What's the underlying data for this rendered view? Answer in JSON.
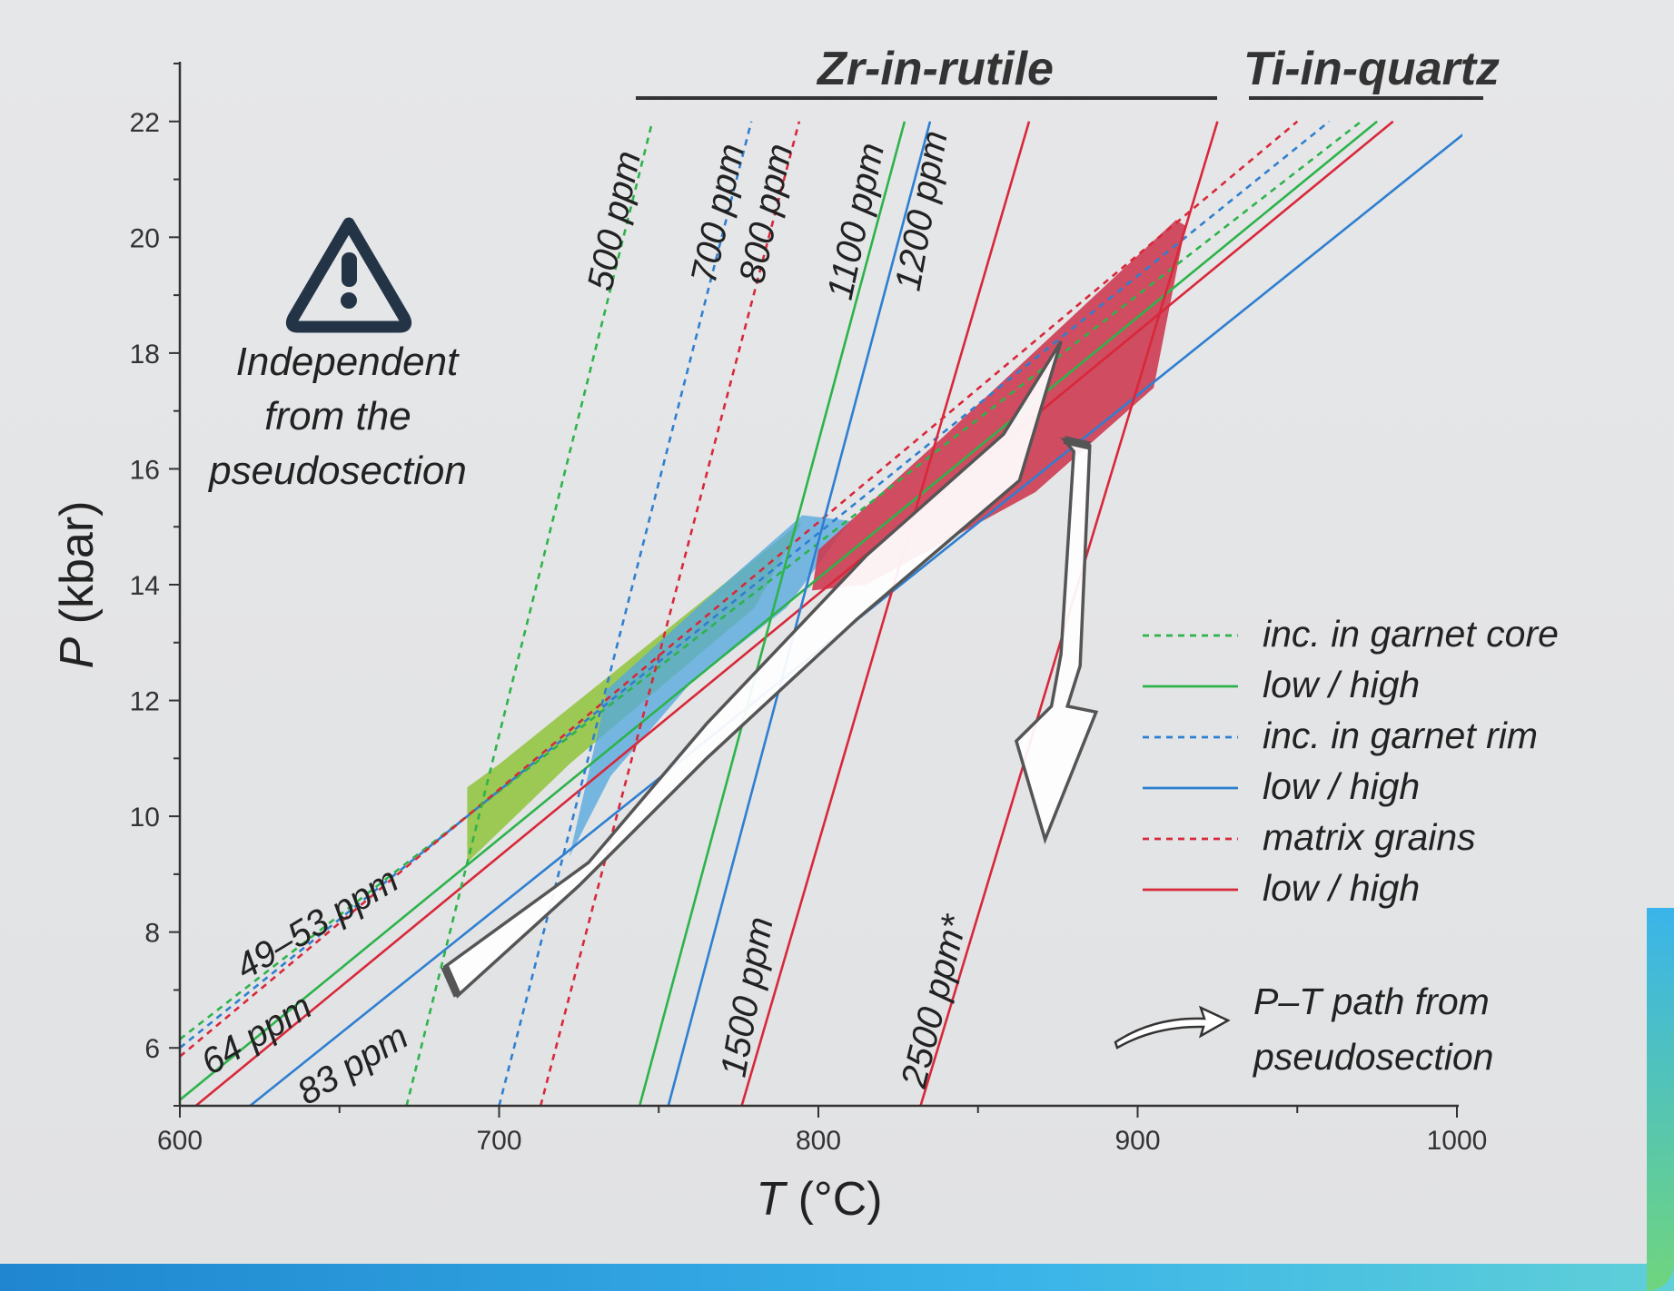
{
  "chart_data": {
    "type": "line",
    "xlabel": "T (°C)",
    "ylabel": "P (kbar)",
    "xlim": [
      600,
      1000
    ],
    "ylim": [
      5,
      23
    ],
    "xticks": [
      600,
      700,
      800,
      900,
      1000
    ],
    "yticks": [
      6,
      8,
      10,
      12,
      14,
      16,
      18,
      20,
      22
    ],
    "headers": {
      "zr": "Zr-in-rutile",
      "ti": "Ti-in-quartz"
    },
    "independent_note": [
      "Independent",
      "from the",
      "pseudosection"
    ],
    "ti_labels": [
      "49–53 ppm",
      "64 ppm",
      "83 ppm"
    ],
    "zr_labels": [
      "500 ppm",
      "700 ppm",
      "800 ppm",
      "1100 ppm",
      "1200 ppm",
      "1500 ppm",
      "2500 ppm*"
    ],
    "legend": [
      {
        "label": "inc. in garnet core",
        "color": "#2db34a",
        "style": "dashed"
      },
      {
        "label": "low / high",
        "color": "#2db34a",
        "style": "solid"
      },
      {
        "label": "inc. in garnet rim",
        "color": "#2f7fd0",
        "style": "dashed"
      },
      {
        "label": "low / high",
        "color": "#2f7fd0",
        "style": "solid"
      },
      {
        "label": "matrix grains",
        "color": "#d8283a",
        "style": "dashed"
      },
      {
        "label": "low / high",
        "color": "#d8283a",
        "style": "solid"
      }
    ],
    "path_legend": [
      "P–T path from",
      "pseudosection"
    ],
    "series": [
      {
        "group": "ti",
        "color": "#2db34a",
        "style": "dashed",
        "points": [
          [
            600,
            6.15
          ],
          [
            970,
            22.0
          ]
        ]
      },
      {
        "group": "ti",
        "color": "#2f7fd0",
        "style": "dashed",
        "points": [
          [
            600,
            6.0
          ],
          [
            960,
            22.0
          ]
        ]
      },
      {
        "group": "ti",
        "color": "#d8283a",
        "style": "dashed",
        "points": [
          [
            600,
            5.85
          ],
          [
            950,
            22.0
          ]
        ]
      },
      {
        "group": "ti",
        "color": "#2db34a",
        "style": "solid",
        "points": [
          [
            600,
            5.1
          ],
          [
            975,
            22.0
          ]
        ]
      },
      {
        "group": "ti",
        "color": "#d8283a",
        "style": "solid",
        "points": [
          [
            605,
            5.0
          ],
          [
            980,
            22.0
          ]
        ]
      },
      {
        "group": "ti",
        "color": "#2f7fd0",
        "style": "solid",
        "points": [
          [
            622,
            5.0
          ],
          [
            1007,
            22.0
          ]
        ]
      },
      {
        "group": "zr",
        "color": "#2db34a",
        "style": "dashed",
        "points": [
          [
            671,
            5.0
          ],
          [
            748,
            22.0
          ]
        ]
      },
      {
        "group": "zr",
        "color": "#2f7fd0",
        "style": "dashed",
        "points": [
          [
            700,
            5.0
          ],
          [
            779,
            22.0
          ]
        ]
      },
      {
        "group": "zr",
        "color": "#d8283a",
        "style": "dashed",
        "points": [
          [
            713,
            5.0
          ],
          [
            794,
            22.0
          ]
        ]
      },
      {
        "group": "zr",
        "color": "#2db34a",
        "style": "solid",
        "points": [
          [
            744,
            5.0
          ],
          [
            827,
            22.0
          ]
        ]
      },
      {
        "group": "zr",
        "color": "#2f7fd0",
        "style": "solid",
        "points": [
          [
            753,
            5.0
          ],
          [
            835,
            22.0
          ]
        ]
      },
      {
        "group": "zr",
        "color": "#d8283a",
        "style": "solid",
        "points": [
          [
            776,
            5.0
          ],
          [
            866,
            22.0
          ]
        ]
      },
      {
        "group": "zr",
        "color": "#d8283a",
        "style": "solid",
        "points": [
          [
            832,
            5.0
          ],
          [
            925,
            22.0
          ]
        ]
      }
    ],
    "regions": [
      {
        "color": "#8fc43a",
        "opacity": 0.85,
        "points": [
          [
            690,
            10.5
          ],
          [
            700,
            10.9
          ],
          [
            795,
            15.1
          ],
          [
            780,
            13.6
          ],
          [
            722,
            10.9
          ],
          [
            690,
            9.2
          ]
        ]
      },
      {
        "color": "#56a9df",
        "opacity": 0.78,
        "points": [
          [
            722,
            9.3
          ],
          [
            734,
            12.2
          ],
          [
            762,
            13.6
          ],
          [
            795,
            15.2
          ],
          [
            810,
            15.1
          ],
          [
            790,
            13.6
          ],
          [
            760,
            12.3
          ],
          [
            735,
            10.7
          ]
        ]
      },
      {
        "color": "#cd3b52",
        "opacity": 0.9,
        "points": [
          [
            798,
            13.9
          ],
          [
            800,
            14.6
          ],
          [
            840,
            16.6
          ],
          [
            912,
            20.3
          ],
          [
            915,
            20.2
          ],
          [
            905,
            17.4
          ],
          [
            868,
            15.6
          ],
          [
            815,
            14.0
          ]
        ]
      }
    ],
    "pt_path": {
      "prograde_outer": [
        [
          683,
          7.4
        ],
        [
          728,
          9.2
        ],
        [
          765,
          11.6
        ],
        [
          815,
          14.5
        ],
        [
          858,
          16.6
        ],
        [
          876,
          18.2
        ],
        [
          863,
          15.8
        ],
        [
          812,
          13.4
        ],
        [
          765,
          11.0
        ],
        [
          725,
          8.8
        ],
        [
          687,
          6.9
        ]
      ],
      "retrograde_outer": [
        [
          877,
          16.5
        ],
        [
          885,
          16.4
        ],
        [
          882,
          12.6
        ],
        [
          878,
          11.9
        ],
        [
          887,
          11.8
        ],
        [
          871,
          9.6
        ],
        [
          862,
          11.3
        ],
        [
          873,
          11.9
        ],
        [
          876,
          12.8
        ],
        [
          880,
          16.3
        ]
      ]
    }
  }
}
